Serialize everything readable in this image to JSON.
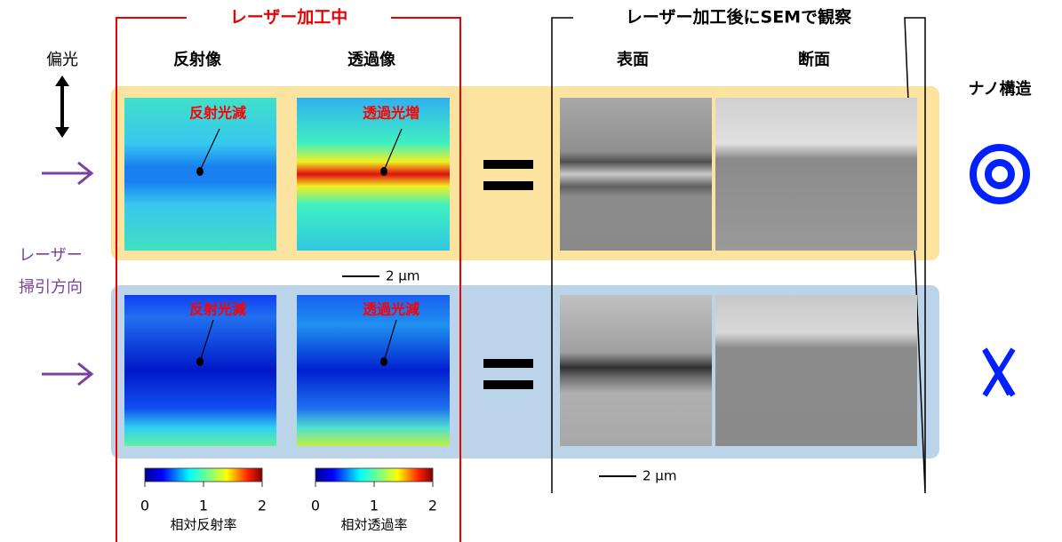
{
  "headers": {
    "during": "レーザー加工中",
    "after": "レーザー加工後にSEMで観察"
  },
  "columns": {
    "polarization": "偏光",
    "reflection": "反射像",
    "transmission": "透過像",
    "surface": "表面",
    "cross_section": "断面",
    "nanostructure": "ナノ構造"
  },
  "scan_direction": [
    "レーザー",
    "掃引方向"
  ],
  "rows": [
    {
      "reflection_note": "反射光減",
      "transmission_note": "透過光増"
    },
    {
      "reflection_note": "反射光減",
      "transmission_note": "透過光減"
    }
  ],
  "scale_bars": [
    "2 µm",
    "2 µm"
  ],
  "colorbars": [
    {
      "ticks": [
        0,
        1,
        2
      ],
      "label": "相対反射率"
    },
    {
      "ticks": [
        0,
        1,
        2
      ],
      "label": "相対透過率"
    }
  ]
}
